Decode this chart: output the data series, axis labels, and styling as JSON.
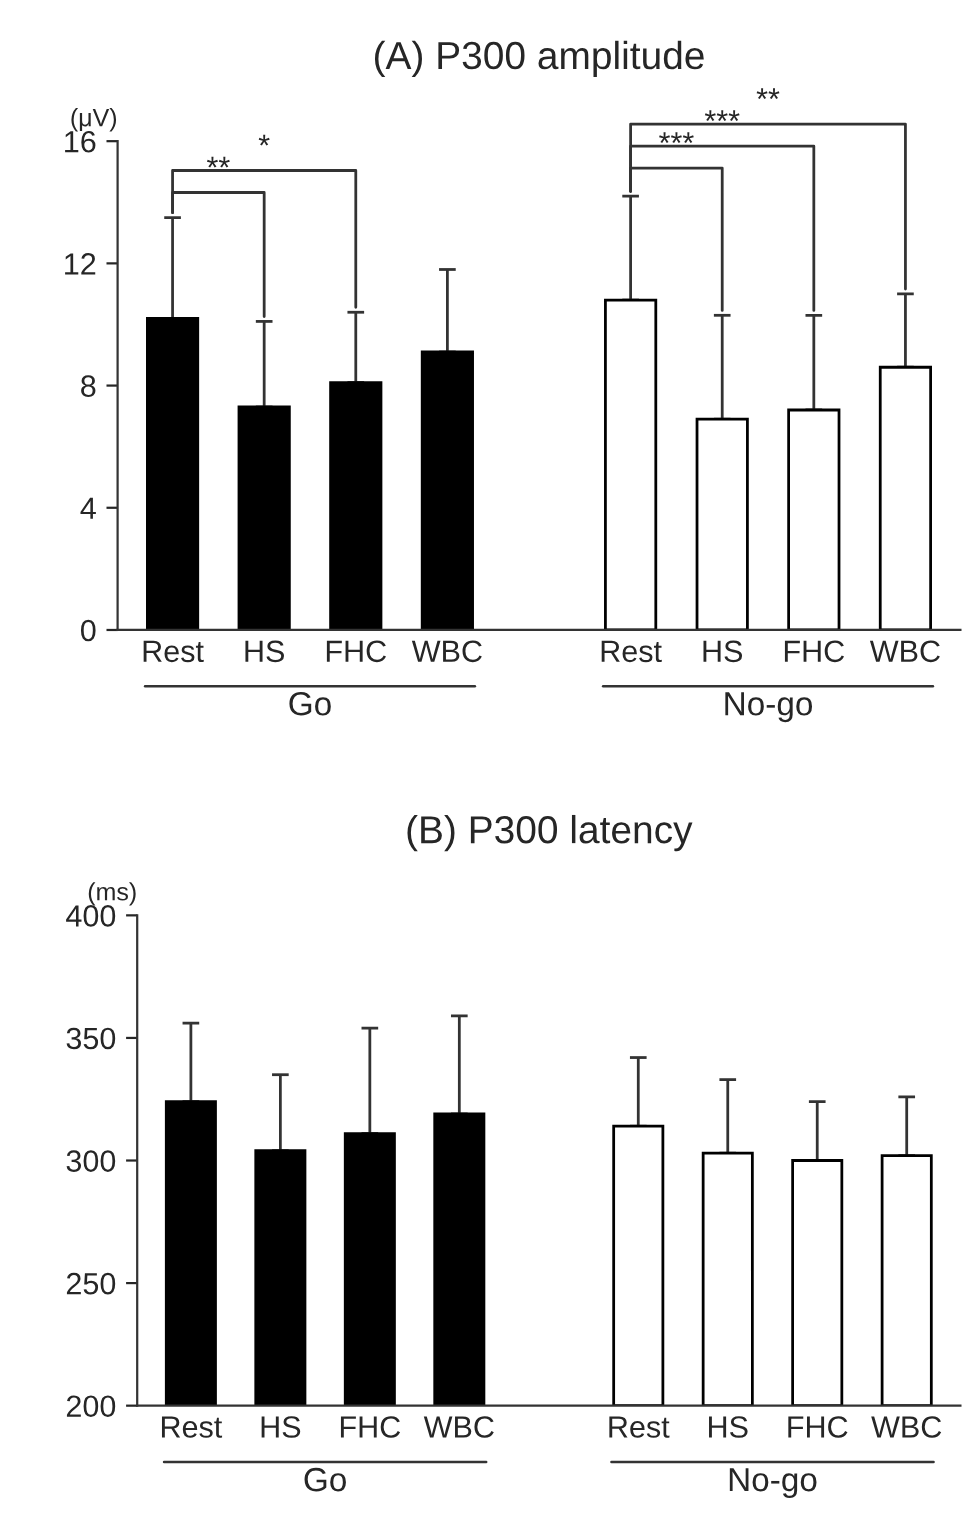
{
  "chart_data": [
    {
      "type": "bar",
      "title": "(A) P300 amplitude",
      "ylabel": "(μV)",
      "categories": [
        "Rest",
        "HS",
        "FHC",
        "WBC",
        null,
        "Rest",
        "HS",
        "FHC",
        "WBC"
      ],
      "series": [
        {
          "name": "Go",
          "color": "#000000",
          "values": [
            10.2,
            7.3,
            8.1,
            9.1,
            null,
            null,
            null,
            null,
            null
          ],
          "errors": [
            [
              10.2,
              13.5
            ],
            [
              7.3,
              10.1
            ],
            [
              8.1,
              10.4
            ],
            [
              9.1,
              11.8
            ],
            null,
            null,
            null,
            null,
            null
          ]
        },
        {
          "name": "No-go",
          "color": "#ffffff",
          "values": [
            null,
            null,
            null,
            null,
            null,
            10.8,
            6.9,
            7.2,
            8.6
          ],
          "errors": [
            null,
            null,
            null,
            null,
            null,
            [
              10.8,
              14.2
            ],
            [
              6.9,
              10.3
            ],
            [
              7.2,
              10.3
            ],
            [
              8.6,
              11.0
            ]
          ]
        }
      ],
      "ylim": [
        0,
        16
      ],
      "yticks": [
        0,
        4,
        8,
        12,
        16
      ],
      "grid": false,
      "legend": false,
      "annotations": [
        "**",
        "*",
        "***",
        "***",
        "**"
      ]
    },
    {
      "type": "bar",
      "title": "(B) P300 latency",
      "ylabel": "(ms)",
      "categories": [
        "Rest",
        "HS",
        "FHC",
        "WBC",
        null,
        "Rest",
        "HS",
        "FHC",
        "WBC"
      ],
      "series": [
        {
          "name": "Go",
          "color": "#000000",
          "values": [
            324,
            304,
            311,
            319,
            null,
            null,
            null,
            null,
            null
          ],
          "errors": [
            [
              324,
              356
            ],
            [
              304,
              335
            ],
            [
              311,
              354
            ],
            [
              319,
              359
            ],
            null,
            null,
            null,
            null,
            null
          ]
        },
        {
          "name": "No-go",
          "color": "#ffffff",
          "values": [
            null,
            null,
            null,
            null,
            null,
            314,
            303,
            300,
            302
          ],
          "errors": [
            null,
            null,
            null,
            null,
            null,
            [
              314,
              342
            ],
            [
              303,
              333
            ],
            [
              300,
              324
            ],
            [
              302,
              326
            ]
          ]
        }
      ],
      "ylim": [
        200,
        400
      ],
      "yticks": [
        200,
        250,
        300,
        350,
        400
      ],
      "grid": false,
      "legend": false
    }
  ]
}
